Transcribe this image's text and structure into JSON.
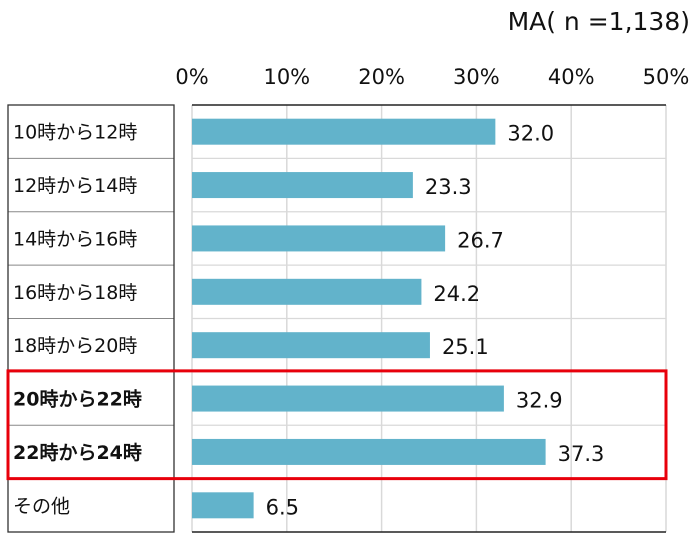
{
  "chart_data": {
    "type": "bar",
    "orientation": "horizontal",
    "annotation": "MA( n =1,138)",
    "categories": [
      "10時から12時",
      "12時から14時",
      "14時から16時",
      "16時から18時",
      "18時から20時",
      "20時から22時",
      "22時から24時",
      "その他"
    ],
    "values": [
      32.0,
      23.3,
      26.7,
      24.2,
      25.1,
      32.9,
      37.3,
      6.5
    ],
    "value_labels": [
      "32.0",
      "23.3",
      "26.7",
      "24.2",
      "25.1",
      "32.9",
      "37.3",
      "6.5"
    ],
    "highlighted": [
      5,
      6
    ],
    "xlim": [
      0,
      50
    ],
    "xticks": [
      "0%",
      "10%",
      "20%",
      "30%",
      "40%",
      "50%"
    ],
    "xtick_values": [
      0,
      10,
      20,
      30,
      40,
      50
    ],
    "grid": true,
    "xlabel": "",
    "ylabel": "",
    "title": ""
  },
  "colors": {
    "bar": "#62B3CB",
    "highlight": "#E8000B",
    "grid": "#D9D9D9"
  }
}
